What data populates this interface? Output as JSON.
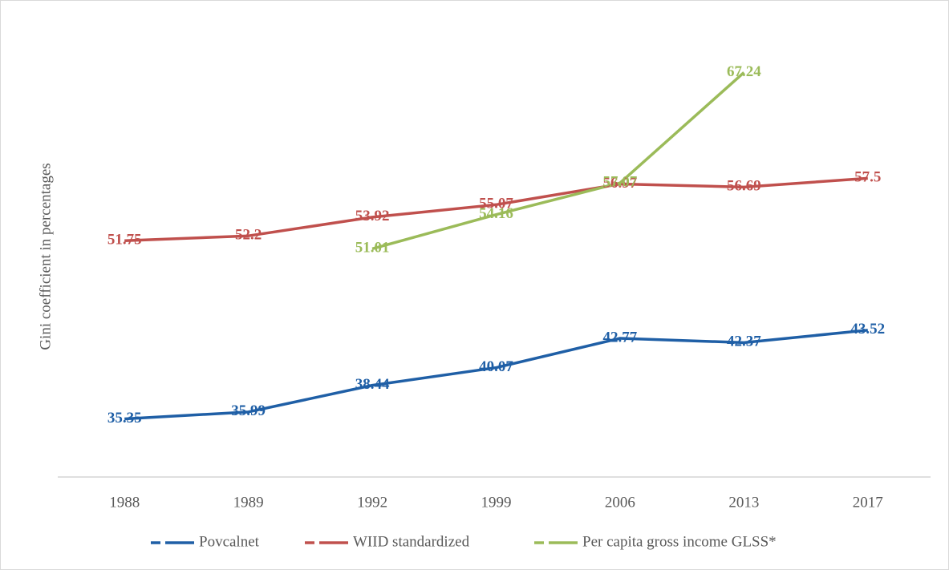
{
  "chart_data": {
    "type": "line",
    "y_label": "Gini coefficient in percentages",
    "categories": [
      "1988",
      "1989",
      "1992",
      "1999",
      "2006",
      "2013",
      "2017"
    ],
    "series": [
      {
        "name": "Povcalnet",
        "color": "#1f5fa6",
        "values": [
          35.35,
          35.99,
          38.44,
          40.07,
          42.77,
          42.37,
          43.52
        ]
      },
      {
        "name": "WIID standardized",
        "color": "#c0504d",
        "values": [
          51.75,
          52.2,
          53.92,
          55.07,
          56.97,
          56.69,
          57.5
        ]
      },
      {
        "name": "Per capita gross income GLSS*",
        "color": "#9bbb59",
        "values": [
          null,
          null,
          51.01,
          54.16,
          57.07,
          67.24,
          null
        ]
      }
    ],
    "ylim": [
      30,
      70
    ],
    "legend": "bottom"
  }
}
